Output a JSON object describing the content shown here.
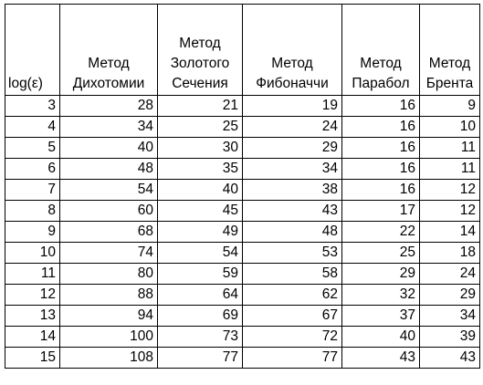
{
  "table": {
    "headers": [
      [
        "log(ε)"
      ],
      [
        "Метод",
        "Дихотомии"
      ],
      [
        "Метод",
        "Золотого",
        "Сечения"
      ],
      [
        "Метод",
        "Фибоначчи"
      ],
      [
        "Метод",
        "Парабол"
      ],
      [
        "Метод",
        "Брента"
      ]
    ],
    "rows": [
      [
        "3",
        "28",
        "21",
        "19",
        "16",
        "9"
      ],
      [
        "4",
        "34",
        "25",
        "24",
        "16",
        "10"
      ],
      [
        "5",
        "40",
        "30",
        "29",
        "16",
        "11"
      ],
      [
        "6",
        "48",
        "35",
        "34",
        "16",
        "11"
      ],
      [
        "7",
        "54",
        "40",
        "38",
        "16",
        "12"
      ],
      [
        "8",
        "60",
        "45",
        "43",
        "17",
        "12"
      ],
      [
        "9",
        "68",
        "49",
        "48",
        "22",
        "14"
      ],
      [
        "10",
        "74",
        "54",
        "53",
        "25",
        "18"
      ],
      [
        "11",
        "80",
        "59",
        "58",
        "29",
        "24"
      ],
      [
        "12",
        "88",
        "64",
        "62",
        "32",
        "29"
      ],
      [
        "13",
        "94",
        "69",
        "67",
        "37",
        "34"
      ],
      [
        "14",
        "100",
        "73",
        "72",
        "40",
        "39"
      ],
      [
        "15",
        "108",
        "77",
        "77",
        "43",
        "43"
      ]
    ]
  }
}
